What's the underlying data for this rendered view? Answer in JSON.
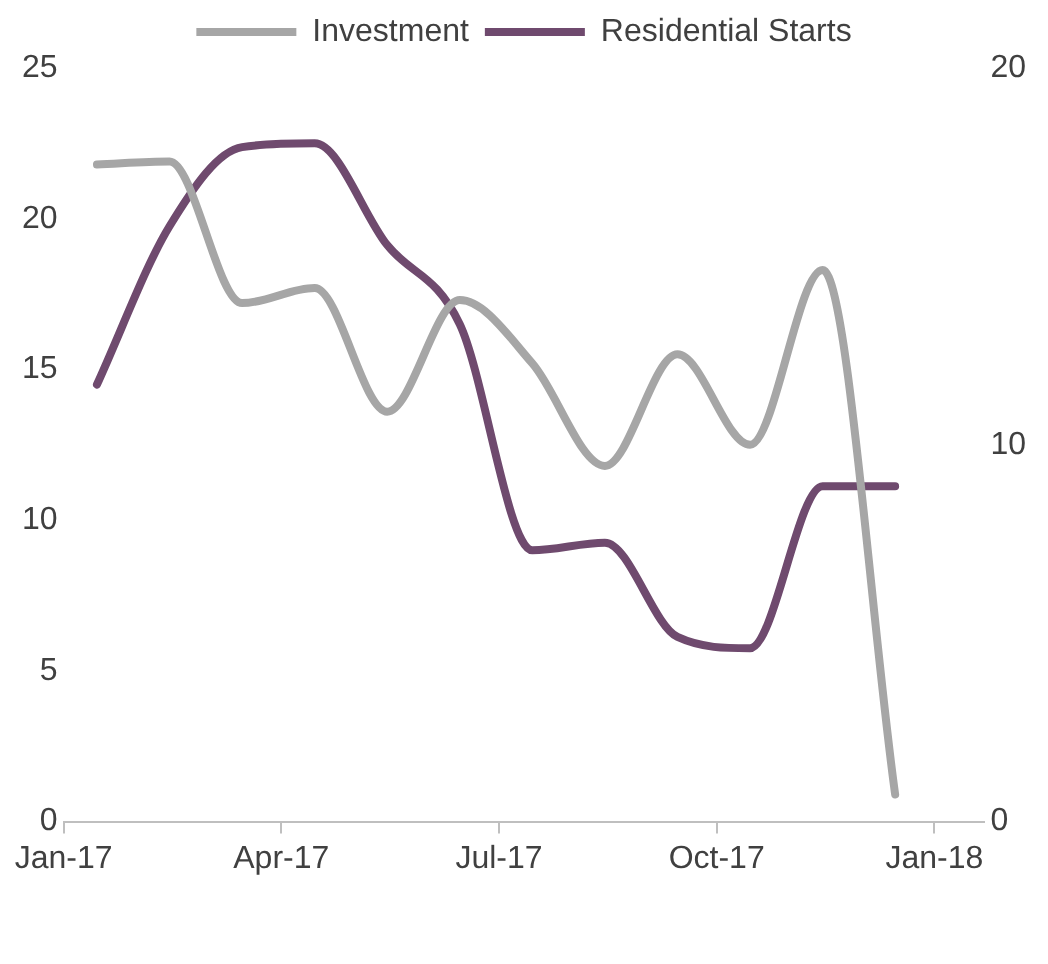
{
  "chart_data": {
    "type": "line",
    "x": [
      "2017-01-15",
      "2017-02-15",
      "2017-03-15",
      "2017-04-15",
      "2017-05-15",
      "2017-06-15",
      "2017-07-15",
      "2017-08-15",
      "2017-09-15",
      "2017-10-15",
      "2017-11-15",
      "2017-12-15"
    ],
    "series": [
      {
        "name": "Investment",
        "color": "#a6a6a6",
        "values": [
          21.8,
          21.9,
          17.2,
          17.7,
          13.6,
          17.3,
          15.2,
          11.8,
          15.5,
          12.5,
          18.3,
          0.9
        ]
      },
      {
        "name": "Residential Starts",
        "color": "#6f4a6e",
        "axis": "y2",
        "values": [
          11.6,
          15.8,
          17.9,
          18.0,
          15.3,
          13.2,
          7.2,
          7.4,
          4.9,
          4.6,
          8.9,
          8.9
        ]
      }
    ],
    "xlim": [
      "2017-01-01",
      "2018-01-22"
    ],
    "xticks": [
      {
        "value": "2017-01-01",
        "label": "Jan-17"
      },
      {
        "value": "2017-04-01",
        "label": "Apr-17"
      },
      {
        "value": "2017-07-01",
        "label": "Jul-17"
      },
      {
        "value": "2017-10-01",
        "label": "Oct-17"
      },
      {
        "value": "2018-01-01",
        "label": "Jan-18"
      }
    ],
    "ylim": [
      0,
      25
    ],
    "yticks": [
      0,
      5,
      10,
      15,
      20,
      25
    ],
    "y2lim": [
      0,
      20
    ],
    "y2ticks": [
      0,
      10,
      20
    ],
    "legend": "top",
    "grid": false,
    "marker": "none",
    "line_style": "solid"
  }
}
